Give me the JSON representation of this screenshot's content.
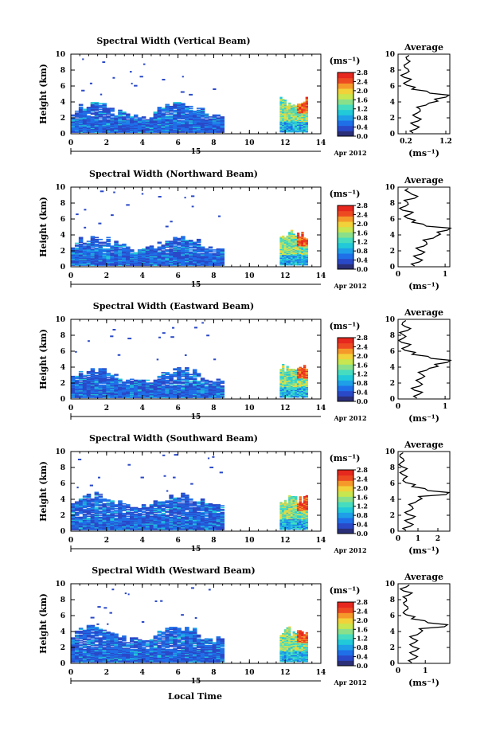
{
  "chart_data": [
    {
      "type": "heatmap",
      "title": "Spectral Width (Vertical Beam)",
      "ylabel": "Height (km)",
      "xlim": [
        0,
        14
      ],
      "ylim": [
        0,
        10
      ],
      "x_ticks": [
        "0",
        "2",
        "4",
        "6",
        "8",
        "10",
        "12",
        "14"
      ],
      "y_ticks": [
        "0",
        "2",
        "4",
        "6",
        "8",
        "10"
      ],
      "colorbar_unit": "(ms⁻¹)",
      "colorbar_ticks": [
        "0.0",
        "0.4",
        "0.8",
        "1.2",
        "1.6",
        "2.0",
        "2.4",
        "2.8"
      ],
      "colorbar_range": [
        0,
        2.8
      ],
      "average": {
        "title": "Average",
        "xlabel": "(ms⁻¹)",
        "x_ticks": [
          "0.2",
          "1.2"
        ],
        "xlim": [
          0,
          1.3
        ],
        "profile": [
          [
            0.0,
            0.38
          ],
          [
            0.5,
            0.45
          ],
          [
            1.0,
            0.4
          ],
          [
            1.5,
            0.5
          ],
          [
            2.0,
            0.45
          ],
          [
            2.5,
            0.48
          ],
          [
            3.0,
            0.55
          ],
          [
            3.5,
            0.7
          ],
          [
            4.0,
            1.0
          ],
          [
            4.5,
            1.2
          ],
          [
            5.0,
            0.8
          ],
          [
            5.5,
            0.35
          ],
          [
            6.0,
            0.22
          ],
          [
            6.5,
            0.25
          ],
          [
            7.0,
            0.15
          ],
          [
            7.5,
            0.2
          ],
          [
            8.0,
            0.25
          ],
          [
            8.5,
            0.15
          ],
          [
            9.0,
            0.3
          ],
          [
            9.5,
            0.2
          ]
        ]
      }
    },
    {
      "type": "heatmap",
      "title": "Spectral Width (Northward Beam)",
      "ylabel": "Height (km)",
      "xlim": [
        0,
        14
      ],
      "ylim": [
        0,
        10
      ],
      "x_ticks": [
        "0",
        "2",
        "4",
        "6",
        "8",
        "10",
        "12",
        "14"
      ],
      "y_ticks": [
        "0",
        "2",
        "4",
        "6",
        "8",
        "10"
      ],
      "colorbar_unit": "(ms⁻¹)",
      "colorbar_ticks": [
        "0.0",
        "0.4",
        "0.8",
        "1.2",
        "1.6",
        "2.0",
        "2.4",
        "2.8"
      ],
      "colorbar_range": [
        0,
        2.8
      ],
      "average": {
        "title": "Average",
        "xlabel": "(ms⁻¹)",
        "x_ticks": [
          "0",
          "1"
        ],
        "xlim": [
          0,
          1.1
        ],
        "profile": [
          [
            0.0,
            0.35
          ],
          [
            0.5,
            0.45
          ],
          [
            1.0,
            0.4
          ],
          [
            1.5,
            0.5
          ],
          [
            2.0,
            0.45
          ],
          [
            2.5,
            0.55
          ],
          [
            3.0,
            0.6
          ],
          [
            3.5,
            0.75
          ],
          [
            4.0,
            0.9
          ],
          [
            4.5,
            1.05
          ],
          [
            5.0,
            0.6
          ],
          [
            5.5,
            0.3
          ],
          [
            6.0,
            0.2
          ],
          [
            6.5,
            0.25
          ],
          [
            7.0,
            0.1
          ],
          [
            7.5,
            0.15
          ],
          [
            8.0,
            0.2
          ],
          [
            8.5,
            0.35
          ],
          [
            9.0,
            0.3
          ],
          [
            9.5,
            0.15
          ]
        ]
      }
    },
    {
      "type": "heatmap",
      "title": "Spectral Width (Eastward Beam)",
      "ylabel": "Height (km)",
      "xlim": [
        0,
        14
      ],
      "ylim": [
        0,
        10
      ],
      "x_ticks": [
        "0",
        "2",
        "4",
        "6",
        "8",
        "10",
        "12",
        "14"
      ],
      "y_ticks": [
        "0",
        "2",
        "4",
        "6",
        "8",
        "10"
      ],
      "colorbar_unit": "(ms⁻¹)",
      "colorbar_ticks": [
        "0.0",
        "0.4",
        "0.8",
        "1.2",
        "1.6",
        "2.0",
        "2.4",
        "2.8"
      ],
      "colorbar_range": [
        0,
        2.8
      ],
      "average": {
        "title": "Average",
        "xlabel": "(ms⁻¹)",
        "x_ticks": [
          "0",
          "1"
        ],
        "xlim": [
          0,
          1.1
        ],
        "profile": [
          [
            0.0,
            0.4
          ],
          [
            0.5,
            0.45
          ],
          [
            1.0,
            0.35
          ],
          [
            1.5,
            0.45
          ],
          [
            2.0,
            0.45
          ],
          [
            2.5,
            0.5
          ],
          [
            3.0,
            0.5
          ],
          [
            3.5,
            0.6
          ],
          [
            4.0,
            0.85
          ],
          [
            4.5,
            1.05
          ],
          [
            5.0,
            0.7
          ],
          [
            5.5,
            0.3
          ],
          [
            6.0,
            0.15
          ],
          [
            6.5,
            0.2
          ],
          [
            7.0,
            0.08
          ],
          [
            7.5,
            0.1
          ],
          [
            8.0,
            0.1
          ],
          [
            8.5,
            0.2
          ],
          [
            9.0,
            0.15
          ],
          [
            9.5,
            0.1
          ]
        ]
      }
    },
    {
      "type": "heatmap",
      "title": "Spectral Width (Southward Beam)",
      "ylabel": "Height (km)",
      "xlim": [
        0,
        14
      ],
      "ylim": [
        0,
        10
      ],
      "x_ticks": [
        "0",
        "2",
        "4",
        "6",
        "8",
        "10",
        "12",
        "14"
      ],
      "y_ticks": [
        "0",
        "2",
        "4",
        "6",
        "8",
        "10"
      ],
      "colorbar_unit": "(ms⁻¹)",
      "colorbar_ticks": [
        "0.0",
        "0.4",
        "0.8",
        "1.2",
        "1.6",
        "2.0",
        "2.4",
        "2.8"
      ],
      "colorbar_range": [
        0,
        2.8
      ],
      "average": {
        "title": "Average",
        "xlabel": "(ms⁻¹)",
        "x_ticks": [
          "0",
          "1",
          "2"
        ],
        "xlim": [
          0,
          2.6
        ],
        "profile": [
          [
            0.0,
            0.4
          ],
          [
            0.5,
            0.6
          ],
          [
            1.0,
            0.5
          ],
          [
            1.5,
            0.7
          ],
          [
            2.0,
            0.5
          ],
          [
            2.5,
            0.6
          ],
          [
            3.0,
            0.7
          ],
          [
            3.5,
            0.85
          ],
          [
            4.0,
            1.2
          ],
          [
            4.5,
            2.4
          ],
          [
            5.0,
            1.5
          ],
          [
            5.5,
            0.7
          ],
          [
            6.0,
            0.4
          ],
          [
            6.5,
            0.3
          ],
          [
            7.0,
            0.25
          ],
          [
            7.5,
            0.3
          ],
          [
            8.0,
            0.2
          ],
          [
            8.5,
            0.15
          ],
          [
            9.0,
            0.25
          ],
          [
            9.5,
            0.1
          ]
        ]
      }
    },
    {
      "type": "heatmap",
      "title": "Spectral Width (Westward Beam)",
      "ylabel": "Height (km)",
      "xlim": [
        0,
        14
      ],
      "ylim": [
        0,
        10
      ],
      "x_ticks": [
        "0",
        "2",
        "4",
        "6",
        "8",
        "10",
        "12",
        "14"
      ],
      "y_ticks": [
        "0",
        "2",
        "4",
        "6",
        "8",
        "10"
      ],
      "colorbar_unit": "(ms⁻¹)",
      "colorbar_ticks": [
        "0.0",
        "0.4",
        "0.8",
        "1.2",
        "1.6",
        "2.0",
        "2.4",
        "2.8"
      ],
      "colorbar_range": [
        0,
        2.8
      ],
      "average": {
        "title": "Average",
        "xlabel": "(ms⁻¹)",
        "x_ticks": [
          "0",
          "1"
        ],
        "xlim": [
          0,
          1.9
        ],
        "profile": [
          [
            0.0,
            0.5
          ],
          [
            0.5,
            0.6
          ],
          [
            1.0,
            0.55
          ],
          [
            1.5,
            0.65
          ],
          [
            2.0,
            0.55
          ],
          [
            2.5,
            0.6
          ],
          [
            3.0,
            0.55
          ],
          [
            3.5,
            0.7
          ],
          [
            4.0,
            0.9
          ],
          [
            4.5,
            1.7
          ],
          [
            5.0,
            1.1
          ],
          [
            5.5,
            0.5
          ],
          [
            6.0,
            0.3
          ],
          [
            6.5,
            0.25
          ],
          [
            7.0,
            0.35
          ],
          [
            7.5,
            0.2
          ],
          [
            8.0,
            0.3
          ],
          [
            8.5,
            0.4
          ],
          [
            9.0,
            0.2
          ],
          [
            9.5,
            0.3
          ]
        ]
      }
    }
  ],
  "date_label_day": "15",
  "date_label_month": "Apr 2012",
  "xlabel": "Local Time",
  "colors": {
    "colormap": [
      "#2b2f78",
      "#2a49c8",
      "#1f6fe8",
      "#1e9fe8",
      "#22c9d8",
      "#46dcc0",
      "#8ae08a",
      "#c8e650",
      "#f2d23a",
      "#f59a2a",
      "#ee4a22",
      "#e6281e"
    ],
    "profile_line": "#000000",
    "axis": "#000000"
  }
}
